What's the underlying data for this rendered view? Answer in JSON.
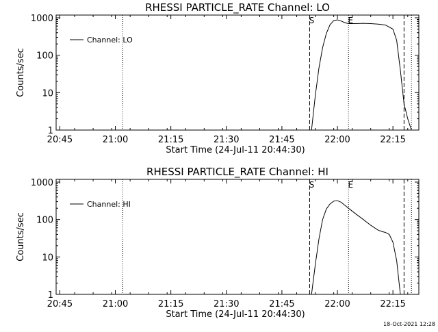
{
  "colors": {
    "line": "#000000",
    "background": "#ffffff"
  },
  "footer_timestamp": "18-Oct-2021 12:28",
  "chart_data": [
    {
      "type": "line",
      "title": "RHESSI PARTICLE_RATE Channel: LO",
      "xlabel": "Start Time (24-Jul-11 20:44:30)",
      "ylabel": "Counts/sec",
      "y_scale": "log",
      "ylim": [
        1,
        1000
      ],
      "xlim": [
        "20:44",
        "22:22"
      ],
      "x_ticks": [
        "20:45",
        "21:00",
        "21:15",
        "21:30",
        "21:45",
        "22:00",
        "22:15"
      ],
      "y_ticks": [
        "1",
        "10",
        "100",
        "1000"
      ],
      "legend": {
        "position": "top-left",
        "entries": [
          "Channel: LO"
        ]
      },
      "markers": [
        {
          "label": "",
          "x": "21:02",
          "style": "dotted"
        },
        {
          "label": "S",
          "x": "21:52.5",
          "style": "dashed"
        },
        {
          "label": "E",
          "x": "22:03",
          "style": "dotted"
        },
        {
          "label": "",
          "x": "22:18",
          "style": "dashed"
        },
        {
          "label": "",
          "x": "22:20",
          "style": "dotted"
        }
      ],
      "series": [
        {
          "name": "Channel: LO",
          "x": [
            "21:53",
            "21:54",
            "21:55",
            "21:56",
            "21:57",
            "21:58",
            "21:59",
            "22:00",
            "22:01",
            "22:02",
            "22:03",
            "22:05",
            "22:07",
            "22:09",
            "22:11",
            "22:13",
            "22:15",
            "22:16",
            "22:17",
            "22:18",
            "22:19",
            "22:20"
          ],
          "values": [
            1,
            8,
            45,
            160,
            380,
            650,
            840,
            880,
            820,
            740,
            700,
            700,
            710,
            700,
            680,
            640,
            500,
            250,
            40,
            5,
            2,
            1
          ]
        }
      ]
    },
    {
      "type": "line",
      "title": "RHESSI PARTICLE_RATE Channel: HI",
      "xlabel": "Start Time (24-Jul-11 20:44:30)",
      "ylabel": "Counts/sec",
      "y_scale": "log",
      "ylim": [
        1,
        1000
      ],
      "xlim": [
        "20:44",
        "22:22"
      ],
      "x_ticks": [
        "20:45",
        "21:00",
        "21:15",
        "21:30",
        "21:45",
        "22:00",
        "22:15"
      ],
      "y_ticks": [
        "1",
        "10",
        "100",
        "1000"
      ],
      "legend": {
        "position": "top-left",
        "entries": [
          "Channel: HI"
        ]
      },
      "markers": [
        {
          "label": "",
          "x": "21:02",
          "style": "dotted"
        },
        {
          "label": "S",
          "x": "21:52.5",
          "style": "dashed"
        },
        {
          "label": "E",
          "x": "22:03",
          "style": "dotted"
        },
        {
          "label": "",
          "x": "22:18",
          "style": "dashed"
        },
        {
          "label": "",
          "x": "22:20",
          "style": "dotted"
        }
      ],
      "series": [
        {
          "name": "Channel: HI",
          "x": [
            "21:53",
            "21:54",
            "21:55",
            "21:56",
            "21:57",
            "21:58",
            "21:59",
            "22:00",
            "22:01",
            "22:03",
            "22:05",
            "22:07",
            "22:09",
            "22:11",
            "22:12",
            "22:13",
            "22:14",
            "22:15",
            "22:16",
            "22:17"
          ],
          "values": [
            1,
            6,
            30,
            100,
            190,
            260,
            310,
            320,
            290,
            200,
            140,
            100,
            70,
            52,
            48,
            45,
            40,
            25,
            8,
            1
          ]
        }
      ]
    }
  ]
}
